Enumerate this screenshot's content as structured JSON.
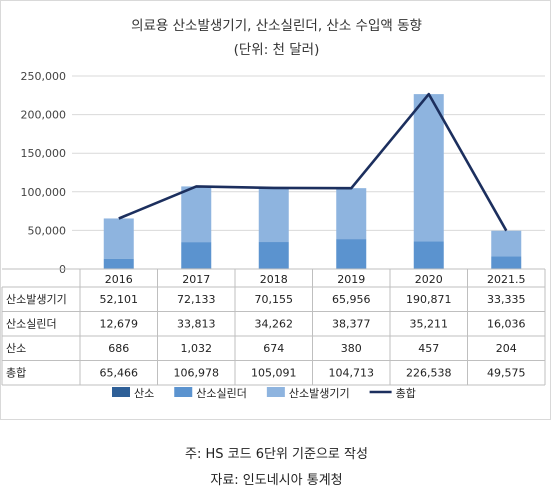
{
  "chart_data": {
    "type": "bar",
    "stacked": true,
    "title": "의료용 산소발생기기, 산소실린더, 산소 수입액 동향",
    "subtitle": "(단위: 천 달러)",
    "categories": [
      "2016",
      "2017",
      "2018",
      "2019",
      "2020",
      "2021.5"
    ],
    "ylim": [
      0,
      250000
    ],
    "yticks": [
      "0",
      "50,000",
      "100,000",
      "150,000",
      "200,000",
      "250,000"
    ],
    "yticks_values": [
      0,
      50000,
      100000,
      150000,
      200000,
      250000
    ],
    "grid": true,
    "legend_position": "bottom",
    "series": [
      {
        "name": "산소",
        "kind": "bar",
        "color": "#2e5f97",
        "values": [
          686,
          1032,
          674,
          380,
          457,
          204
        ],
        "labels": [
          "686",
          "1,032",
          "674",
          "380",
          "457",
          "204"
        ]
      },
      {
        "name": "산소실린더",
        "kind": "bar",
        "color": "#5b93cf",
        "values": [
          12679,
          33813,
          34262,
          38377,
          35211,
          16036
        ],
        "labels": [
          "12,679",
          "33,813",
          "34,262",
          "38,377",
          "35,211",
          "16,036"
        ]
      },
      {
        "name": "산소발생기기",
        "kind": "bar",
        "color": "#8eb4df",
        "values": [
          52101,
          72133,
          70155,
          65956,
          190871,
          33335
        ],
        "labels": [
          "52,101",
          "72,133",
          "70,155",
          "65,956",
          "190,871",
          "33,335"
        ]
      },
      {
        "name": "총합",
        "kind": "line",
        "color": "#1c2f5e",
        "values": [
          65466,
          106978,
          105091,
          104713,
          226538,
          49575
        ],
        "labels": [
          "65,466",
          "106,978",
          "105,091",
          "104,713",
          "226,538",
          "49,575"
        ]
      }
    ],
    "table_row_order": [
      "산소발생기기",
      "산소실린더",
      "산소",
      "총합"
    ]
  },
  "notes": {
    "line1": "주: HS 코드 6단위 기준으로 작성",
    "line2": "자료: 인도네시아 통계청"
  }
}
